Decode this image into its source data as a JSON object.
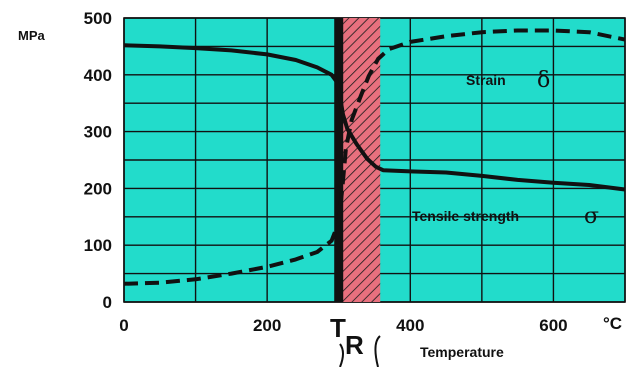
{
  "chart_data": {
    "type": "line",
    "y_unit_label": "MPa",
    "x_unit_label": "°C",
    "x_axis_title": "Temperature",
    "xlim": [
      0,
      700
    ],
    "ylim": [
      0,
      500
    ],
    "x_ticks": [
      0,
      200,
      400,
      600
    ],
    "y_ticks": [
      0,
      100,
      200,
      300,
      400,
      500
    ],
    "grid": true,
    "background_color": "#22dccb",
    "hatch_color": "#e8707e",
    "transition_marker": {
      "label_main": "T",
      "label_sub": "R",
      "x": 300
    },
    "transition_band": [
      300,
      358
    ],
    "series": [
      {
        "name": "Tensile strength",
        "symbol": "σ",
        "style": "solid",
        "points": [
          [
            0,
            452
          ],
          [
            50,
            450
          ],
          [
            100,
            447
          ],
          [
            150,
            443
          ],
          [
            200,
            436
          ],
          [
            240,
            426
          ],
          [
            270,
            413
          ],
          [
            290,
            400
          ],
          [
            297,
            388
          ],
          [
            302,
            360
          ],
          [
            306,
            330
          ],
          [
            312,
            305
          ],
          [
            325,
            278
          ],
          [
            340,
            252
          ],
          [
            352,
            238
          ],
          [
            362,
            232
          ],
          [
            400,
            230
          ],
          [
            450,
            228
          ],
          [
            500,
            222
          ],
          [
            550,
            215
          ],
          [
            600,
            210
          ],
          [
            650,
            206
          ],
          [
            700,
            198
          ]
        ]
      },
      {
        "name": "Strain",
        "symbol": "δ",
        "style": "dashed",
        "points": [
          [
            0,
            32
          ],
          [
            50,
            34
          ],
          [
            100,
            40
          ],
          [
            150,
            50
          ],
          [
            200,
            62
          ],
          [
            240,
            75
          ],
          [
            270,
            88
          ],
          [
            290,
            108
          ],
          [
            300,
            140
          ],
          [
            305,
            200
          ],
          [
            310,
            270
          ],
          [
            318,
            320
          ],
          [
            330,
            360
          ],
          [
            342,
            398
          ],
          [
            355,
            428
          ],
          [
            370,
            445
          ],
          [
            400,
            458
          ],
          [
            450,
            468
          ],
          [
            500,
            475
          ],
          [
            550,
            478
          ],
          [
            600,
            478
          ],
          [
            650,
            475
          ],
          [
            700,
            462
          ]
        ]
      }
    ]
  }
}
